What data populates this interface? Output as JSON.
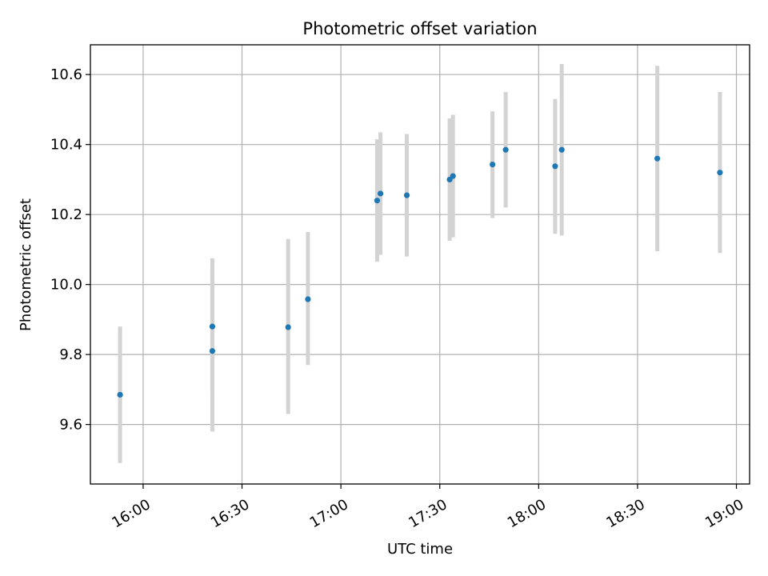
{
  "chart_data": {
    "type": "scatter",
    "title": "Photometric offset variation",
    "xlabel": "UTC time",
    "ylabel": "Photometric offset",
    "x_axis": {
      "kind": "time",
      "range": [
        "15:44",
        "19:04"
      ],
      "ticks": [
        "16:00",
        "16:30",
        "17:00",
        "17:30",
        "18:00",
        "18:30",
        "19:00"
      ]
    },
    "y_axis": {
      "range": [
        9.43,
        10.685
      ],
      "ticks": [
        9.6,
        9.8,
        10.0,
        10.2,
        10.4,
        10.6
      ],
      "tick_labels": [
        "9.6",
        "9.8",
        "10.0",
        "10.2",
        "10.4",
        "10.6"
      ]
    },
    "grid": true,
    "colors": {
      "point": "#1f77b4",
      "errorbar": "#d3d3d3",
      "grid": "#b0b0b0"
    },
    "points": [
      {
        "time": "15:53",
        "y": 9.685,
        "low": 9.49,
        "high": 9.88
      },
      {
        "time": "16:21",
        "y": 9.88,
        "low": 9.69,
        "high": 10.075
      },
      {
        "time": "16:21",
        "y": 9.81,
        "low": 9.58,
        "high": 10.04
      },
      {
        "time": "16:44",
        "y": 9.878,
        "low": 9.63,
        "high": 10.13
      },
      {
        "time": "16:50",
        "y": 9.958,
        "low": 9.77,
        "high": 10.15
      },
      {
        "time": "17:11",
        "y": 10.24,
        "low": 10.065,
        "high": 10.415
      },
      {
        "time": "17:12",
        "y": 10.26,
        "low": 10.085,
        "high": 10.435
      },
      {
        "time": "17:20",
        "y": 10.255,
        "low": 10.08,
        "high": 10.43
      },
      {
        "time": "17:33",
        "y": 10.3,
        "low": 10.125,
        "high": 10.475
      },
      {
        "time": "17:34",
        "y": 10.31,
        "low": 10.135,
        "high": 10.485
      },
      {
        "time": "17:46",
        "y": 10.343,
        "low": 10.19,
        "high": 10.495
      },
      {
        "time": "17:50",
        "y": 10.385,
        "low": 10.22,
        "high": 10.55
      },
      {
        "time": "18:05",
        "y": 10.338,
        "low": 10.145,
        "high": 10.53
      },
      {
        "time": "18:07",
        "y": 10.385,
        "low": 10.14,
        "high": 10.63
      },
      {
        "time": "18:36",
        "y": 10.36,
        "low": 10.095,
        "high": 10.625
      },
      {
        "time": "18:55",
        "y": 10.32,
        "low": 10.09,
        "high": 10.55
      }
    ]
  }
}
